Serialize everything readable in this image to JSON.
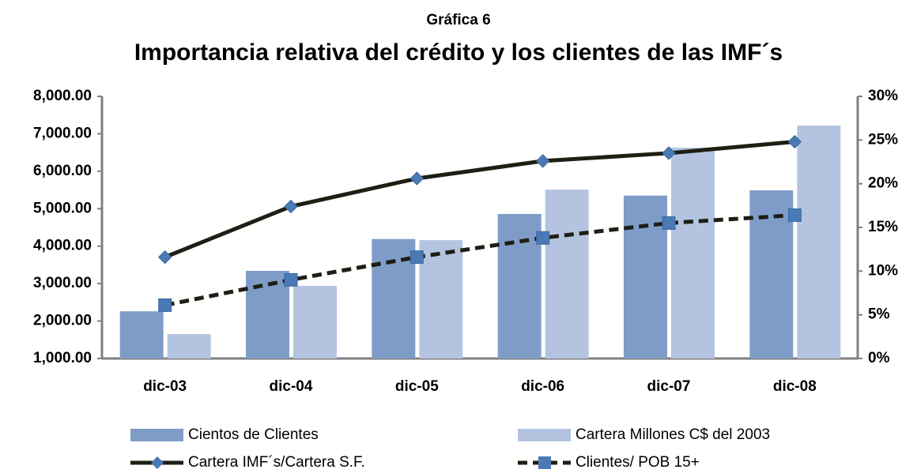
{
  "chart_data": {
    "type": "bar",
    "subtitle": "Gráfica 6",
    "title": "Importancia relativa del crédito y los clientes de las IMF´s",
    "categories": [
      "dic-03",
      "dic-04",
      "dic-05",
      "dic-06",
      "dic-07",
      "dic-08"
    ],
    "series": [
      {
        "name": "Cientos de Clientes",
        "type": "bar",
        "color": "#7f9cc9",
        "values": [
          2260,
          3340,
          4190,
          4860,
          5350,
          5490
        ]
      },
      {
        "name": "Cartera Millones C$ del 2003",
        "type": "bar",
        "color": "#b4c4e0",
        "values": [
          1650,
          2940,
          4160,
          5510,
          6630,
          7220
        ]
      },
      {
        "name": "Cartera IMF´s/Cartera S.F.",
        "type": "line",
        "axis": "y2",
        "color": "#1e1e14",
        "marker": "diamond",
        "marker_color": "#4a7ab5",
        "dashed": false,
        "values": [
          11.6,
          17.4,
          20.6,
          22.6,
          23.5,
          24.8
        ]
      },
      {
        "name": "Clientes/ POB 15+",
        "type": "line",
        "axis": "y2",
        "color": "#1e1e14",
        "marker": "square",
        "marker_color": "#4a7ab5",
        "dashed": true,
        "values": [
          6.1,
          9.0,
          11.6,
          13.8,
          15.5,
          16.4
        ]
      }
    ],
    "ylim": [
      1000,
      8000
    ],
    "yticks": [
      {
        "value": 1000,
        "label": "1,000.00"
      },
      {
        "value": 2000,
        "label": "2,000.00"
      },
      {
        "value": 3000,
        "label": "3,000.00"
      },
      {
        "value": 4000,
        "label": "4,000.00"
      },
      {
        "value": 5000,
        "label": "5,000.00"
      },
      {
        "value": 6000,
        "label": "6,000.00"
      },
      {
        "value": 7000,
        "label": "7,000.00"
      },
      {
        "value": 8000,
        "label": "8,000.00"
      }
    ],
    "y2lim": [
      0,
      30
    ],
    "y2ticks": [
      {
        "value": 0,
        "label": "0%"
      },
      {
        "value": 5,
        "label": "5%"
      },
      {
        "value": 10,
        "label": "10%"
      },
      {
        "value": 15,
        "label": "15%"
      },
      {
        "value": 20,
        "label": "20%"
      },
      {
        "value": 25,
        "label": "25%"
      },
      {
        "value": 30,
        "label": "30%"
      }
    ],
    "grid": false,
    "legend": "bottom"
  }
}
